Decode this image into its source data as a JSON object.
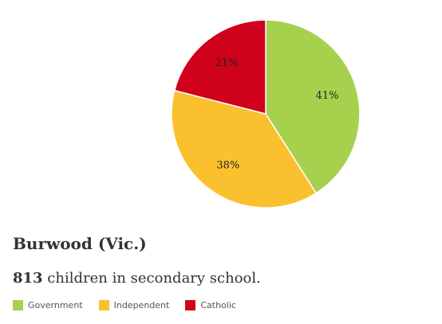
{
  "chart_data": {
    "type": "pie",
    "categories": [
      "Government",
      "Independent",
      "Catholic"
    ],
    "values": [
      41,
      38,
      21
    ],
    "labels": [
      "41%",
      "38%",
      "21%"
    ],
    "colors": [
      "#a7d04d",
      "#fbc02d",
      "#d0021b"
    ],
    "legend_position": "bottom-left"
  },
  "title": "Burwood (Vic.)",
  "subtitle": {
    "count": "813",
    "text": " children in secondary school."
  },
  "legend": {
    "items": [
      {
        "label": "Government",
        "color": "#a7d04d"
      },
      {
        "label": "Independent",
        "color": "#fbc02d"
      },
      {
        "label": "Catholic",
        "color": "#d0021b"
      }
    ]
  }
}
